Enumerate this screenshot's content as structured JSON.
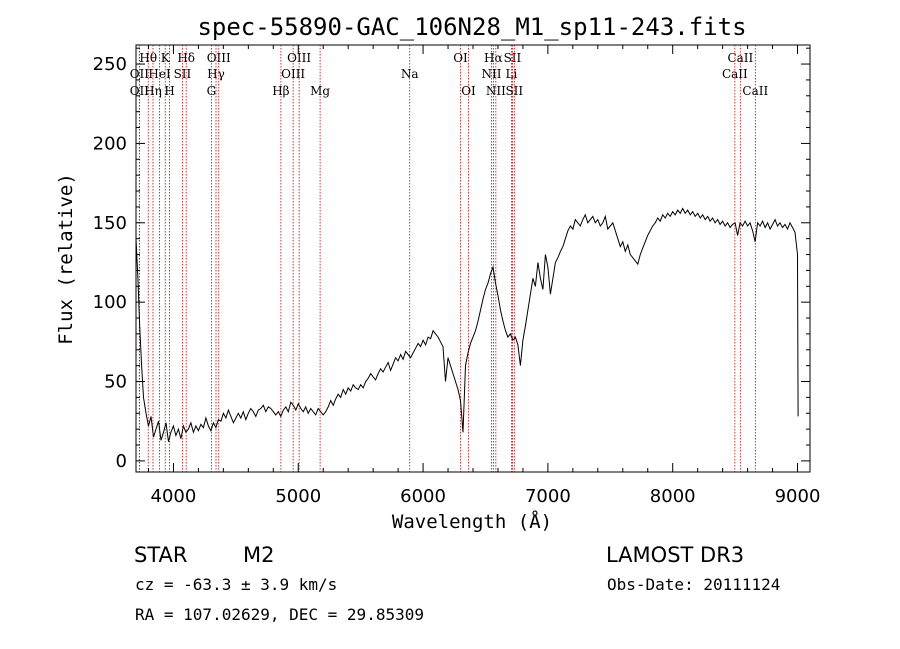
{
  "chart_data": {
    "type": "line",
    "title": "spec-55890-GAC_106N28_M1_sp11-243.fits",
    "xlabel": "Wavelength (Å)",
    "ylabel": "Flux (relative)",
    "xlim": [
      3700,
      9100
    ],
    "ylim": [
      -7,
      262
    ],
    "xticks": [
      4000,
      5000,
      6000,
      7000,
      8000,
      9000
    ],
    "yticks": [
      0,
      50,
      100,
      150,
      200,
      250
    ],
    "grid": false,
    "line_color": "#000000",
    "marker_color": "#cc0000",
    "series": [
      {
        "name": "flux",
        "points": [
          [
            3700,
            140
          ],
          [
            3715,
            115
          ],
          [
            3730,
            85
          ],
          [
            3745,
            60
          ],
          [
            3760,
            40
          ],
          [
            3780,
            30
          ],
          [
            3800,
            22
          ],
          [
            3820,
            28
          ],
          [
            3840,
            15
          ],
          [
            3860,
            20
          ],
          [
            3880,
            25
          ],
          [
            3900,
            13
          ],
          [
            3920,
            18
          ],
          [
            3940,
            24
          ],
          [
            3960,
            12
          ],
          [
            3980,
            18
          ],
          [
            4000,
            22
          ],
          [
            4020,
            16
          ],
          [
            4040,
            20
          ],
          [
            4060,
            14
          ],
          [
            4080,
            22
          ],
          [
            4100,
            18
          ],
          [
            4120,
            20
          ],
          [
            4140,
            24
          ],
          [
            4160,
            18
          ],
          [
            4180,
            22
          ],
          [
            4200,
            19
          ],
          [
            4220,
            23
          ],
          [
            4240,
            21
          ],
          [
            4260,
            27
          ],
          [
            4280,
            22
          ],
          [
            4300,
            19
          ],
          [
            4320,
            24
          ],
          [
            4340,
            21
          ],
          [
            4360,
            26
          ],
          [
            4380,
            25
          ],
          [
            4400,
            30
          ],
          [
            4420,
            27
          ],
          [
            4440,
            32
          ],
          [
            4460,
            28
          ],
          [
            4480,
            24
          ],
          [
            4500,
            27
          ],
          [
            4520,
            30
          ],
          [
            4540,
            27
          ],
          [
            4560,
            31
          ],
          [
            4580,
            26
          ],
          [
            4600,
            30
          ],
          [
            4620,
            33
          ],
          [
            4640,
            31
          ],
          [
            4660,
            28
          ],
          [
            4680,
            32
          ],
          [
            4700,
            33
          ],
          [
            4720,
            35
          ],
          [
            4740,
            31
          ],
          [
            4760,
            34
          ],
          [
            4780,
            33
          ],
          [
            4800,
            31
          ],
          [
            4820,
            29
          ],
          [
            4840,
            31
          ],
          [
            4860,
            28
          ],
          [
            4880,
            32
          ],
          [
            4900,
            34
          ],
          [
            4920,
            31
          ],
          [
            4940,
            37
          ],
          [
            4960,
            35
          ],
          [
            4980,
            32
          ],
          [
            5000,
            36
          ],
          [
            5020,
            33
          ],
          [
            5040,
            31
          ],
          [
            5060,
            34
          ],
          [
            5080,
            30
          ],
          [
            5100,
            33
          ],
          [
            5120,
            31
          ],
          [
            5140,
            29
          ],
          [
            5160,
            33
          ],
          [
            5180,
            31
          ],
          [
            5200,
            29
          ],
          [
            5220,
            31
          ],
          [
            5240,
            34
          ],
          [
            5260,
            38
          ],
          [
            5280,
            35
          ],
          [
            5300,
            39
          ],
          [
            5320,
            42
          ],
          [
            5340,
            40
          ],
          [
            5360,
            45
          ],
          [
            5380,
            42
          ],
          [
            5400,
            46
          ],
          [
            5420,
            44
          ],
          [
            5440,
            48
          ],
          [
            5460,
            46
          ],
          [
            5480,
            45
          ],
          [
            5500,
            48
          ],
          [
            5520,
            46
          ],
          [
            5540,
            50
          ],
          [
            5560,
            52
          ],
          [
            5580,
            55
          ],
          [
            5600,
            53
          ],
          [
            5620,
            51
          ],
          [
            5640,
            55
          ],
          [
            5660,
            58
          ],
          [
            5680,
            56
          ],
          [
            5700,
            59
          ],
          [
            5720,
            62
          ],
          [
            5740,
            57
          ],
          [
            5760,
            61
          ],
          [
            5780,
            65
          ],
          [
            5800,
            63
          ],
          [
            5820,
            67
          ],
          [
            5840,
            64
          ],
          [
            5860,
            69
          ],
          [
            5880,
            67
          ],
          [
            5900,
            65
          ],
          [
            5920,
            68
          ],
          [
            5940,
            71
          ],
          [
            5960,
            74
          ],
          [
            5980,
            72
          ],
          [
            6000,
            76
          ],
          [
            6020,
            73
          ],
          [
            6040,
            78
          ],
          [
            6060,
            77
          ],
          [
            6080,
            82
          ],
          [
            6100,
            80
          ],
          [
            6120,
            78
          ],
          [
            6140,
            75
          ],
          [
            6160,
            72
          ],
          [
            6180,
            50
          ],
          [
            6200,
            65
          ],
          [
            6220,
            60
          ],
          [
            6240,
            55
          ],
          [
            6260,
            50
          ],
          [
            6280,
            45
          ],
          [
            6300,
            38
          ],
          [
            6320,
            18
          ],
          [
            6340,
            60
          ],
          [
            6360,
            68
          ],
          [
            6380,
            74
          ],
          [
            6400,
            78
          ],
          [
            6420,
            82
          ],
          [
            6440,
            88
          ],
          [
            6460,
            95
          ],
          [
            6480,
            102
          ],
          [
            6500,
            108
          ],
          [
            6520,
            112
          ],
          [
            6540,
            118
          ],
          [
            6560,
            122
          ],
          [
            6580,
            112
          ],
          [
            6600,
            104
          ],
          [
            6620,
            95
          ],
          [
            6640,
            88
          ],
          [
            6660,
            82
          ],
          [
            6680,
            78
          ],
          [
            6700,
            80
          ],
          [
            6720,
            76
          ],
          [
            6740,
            78
          ],
          [
            6760,
            73
          ],
          [
            6780,
            60
          ],
          [
            6800,
            76
          ],
          [
            6820,
            85
          ],
          [
            6840,
            95
          ],
          [
            6860,
            105
          ],
          [
            6880,
            115
          ],
          [
            6900,
            110
          ],
          [
            6920,
            125
          ],
          [
            6940,
            115
          ],
          [
            6960,
            108
          ],
          [
            6980,
            130
          ],
          [
            7000,
            122
          ],
          [
            7020,
            105
          ],
          [
            7040,
            115
          ],
          [
            7060,
            125
          ],
          [
            7080,
            128
          ],
          [
            7100,
            132
          ],
          [
            7120,
            135
          ],
          [
            7140,
            140
          ],
          [
            7160,
            145
          ],
          [
            7180,
            148
          ],
          [
            7200,
            146
          ],
          [
            7220,
            152
          ],
          [
            7240,
            150
          ],
          [
            7260,
            148
          ],
          [
            7280,
            152
          ],
          [
            7300,
            155
          ],
          [
            7320,
            150
          ],
          [
            7340,
            152
          ],
          [
            7360,
            154
          ],
          [
            7380,
            150
          ],
          [
            7400,
            152
          ],
          [
            7420,
            148
          ],
          [
            7440,
            150
          ],
          [
            7460,
            154
          ],
          [
            7480,
            146
          ],
          [
            7500,
            148
          ],
          [
            7520,
            150
          ],
          [
            7540,
            145
          ],
          [
            7560,
            140
          ],
          [
            7580,
            135
          ],
          [
            7600,
            138
          ],
          [
            7620,
            132
          ],
          [
            7640,
            136
          ],
          [
            7660,
            130
          ],
          [
            7680,
            128
          ],
          [
            7700,
            126
          ],
          [
            7720,
            124
          ],
          [
            7740,
            130
          ],
          [
            7760,
            134
          ],
          [
            7780,
            138
          ],
          [
            7800,
            142
          ],
          [
            7820,
            145
          ],
          [
            7840,
            148
          ],
          [
            7860,
            150
          ],
          [
            7880,
            153
          ],
          [
            7900,
            151
          ],
          [
            7920,
            155
          ],
          [
            7940,
            153
          ],
          [
            7960,
            156
          ],
          [
            7980,
            154
          ],
          [
            8000,
            157
          ],
          [
            8020,
            155
          ],
          [
            8040,
            158
          ],
          [
            8060,
            156
          ],
          [
            8080,
            159
          ],
          [
            8100,
            156
          ],
          [
            8120,
            158
          ],
          [
            8140,
            155
          ],
          [
            8160,
            157
          ],
          [
            8180,
            154
          ],
          [
            8200,
            156
          ],
          [
            8220,
            153
          ],
          [
            8240,
            155
          ],
          [
            8260,
            152
          ],
          [
            8280,
            154
          ],
          [
            8300,
            151
          ],
          [
            8320,
            153
          ],
          [
            8340,
            150
          ],
          [
            8360,
            152
          ],
          [
            8380,
            149
          ],
          [
            8400,
            151
          ],
          [
            8420,
            148
          ],
          [
            8440,
            150
          ],
          [
            8460,
            147
          ],
          [
            8480,
            149
          ],
          [
            8500,
            150
          ],
          [
            8520,
            142
          ],
          [
            8540,
            150
          ],
          [
            8560,
            148
          ],
          [
            8580,
            151
          ],
          [
            8600,
            148
          ],
          [
            8620,
            150
          ],
          [
            8640,
            145
          ],
          [
            8660,
            138
          ],
          [
            8680,
            150
          ],
          [
            8700,
            148
          ],
          [
            8720,
            151
          ],
          [
            8740,
            147
          ],
          [
            8760,
            150
          ],
          [
            8780,
            146
          ],
          [
            8800,
            149
          ],
          [
            8820,
            152
          ],
          [
            8840,
            148
          ],
          [
            8860,
            150
          ],
          [
            8880,
            147
          ],
          [
            8900,
            149
          ],
          [
            8920,
            146
          ],
          [
            8940,
            150
          ],
          [
            8960,
            147
          ],
          [
            8980,
            144
          ],
          [
            9000,
            130
          ],
          [
            9005,
            28
          ]
        ]
      }
    ],
    "spectral_lines": [
      {
        "label": "Hθ",
        "wavelength": 3798,
        "row": 1
      },
      {
        "label": "OII",
        "wavelength": 3727,
        "row": 2
      },
      {
        "label": "OII",
        "wavelength": 3727,
        "row": 3
      },
      {
        "label": "Hη",
        "wavelength": 3836,
        "row": 3
      },
      {
        "label": "HeI",
        "wavelength": 3889,
        "row": 2
      },
      {
        "label": "K",
        "wavelength": 3934,
        "row": 1
      },
      {
        "label": "H",
        "wavelength": 3969,
        "row": 3
      },
      {
        "label": "SII",
        "wavelength": 4072,
        "row": 2
      },
      {
        "label": "Hδ",
        "wavelength": 4102,
        "row": 1
      },
      {
        "label": "OIII",
        "wavelength": 4363,
        "row": 1
      },
      {
        "label": "Hγ",
        "wavelength": 4341,
        "row": 2
      },
      {
        "label": "G",
        "wavelength": 4304,
        "row": 3
      },
      {
        "label": "Hβ",
        "wavelength": 4861,
        "row": 3
      },
      {
        "label": "OIII",
        "wavelength": 5007,
        "row": 1
      },
      {
        "label": "OIII",
        "wavelength": 4959,
        "row": 2
      },
      {
        "label": "Mg",
        "wavelength": 5175,
        "row": 3
      },
      {
        "label": "Na",
        "wavelength": 5893,
        "row": 2
      },
      {
        "label": "OI",
        "wavelength": 6300,
        "row": 1
      },
      {
        "label": "OI",
        "wavelength": 6364,
        "row": 3
      },
      {
        "label": "Hα",
        "wavelength": 6563,
        "row": 1
      },
      {
        "label": "NII",
        "wavelength": 6548,
        "row": 2
      },
      {
        "label": "NII",
        "wavelength": 6583,
        "row": 3
      },
      {
        "label": "SII",
        "wavelength": 6716,
        "row": 1
      },
      {
        "label": "Li",
        "wavelength": 6708,
        "row": 2
      },
      {
        "label": "SII",
        "wavelength": 6731,
        "row": 3
      },
      {
        "label": "CaII",
        "wavelength": 8542,
        "row": 1
      },
      {
        "label": "CaII",
        "wavelength": 8498,
        "row": 2
      },
      {
        "label": "CaII",
        "wavelength": 8662,
        "row": 3
      }
    ]
  },
  "info": {
    "object_type": "STAR",
    "subclass": "M2",
    "survey": "LAMOST DR3",
    "cz": "cz = -63.3 ± 3.9 km/s",
    "coords": "RA = 107.02629, DEC =  29.85309",
    "obs_date": "Obs-Date: 20111124"
  }
}
